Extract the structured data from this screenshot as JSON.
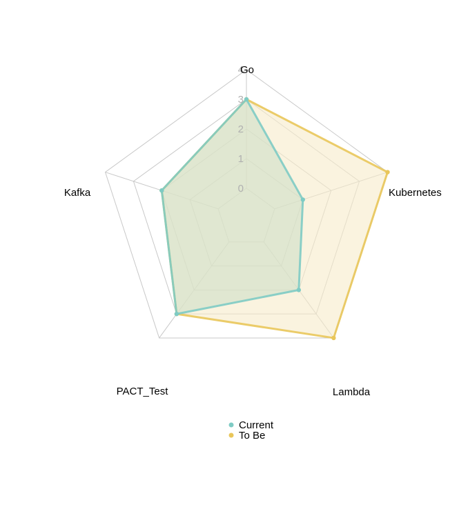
{
  "chart_data": {
    "type": "radar",
    "axes": [
      "Go",
      "Kubernetes",
      "Lambda",
      "PACT_Test",
      "Kafka"
    ],
    "rlim": [
      0,
      4
    ],
    "ticks": [
      "0",
      "1",
      "2",
      "3",
      "4"
    ],
    "grid": true,
    "legend_position": "bottom",
    "series": [
      {
        "name": "Current",
        "values": [
          3,
          1,
          2,
          3,
          2
        ],
        "color": "#7ecbc4",
        "fill": "#cfe0c8"
      },
      {
        "name": "To Be",
        "values": [
          3,
          4,
          4,
          3,
          2
        ],
        "color": "#e9c65a",
        "fill": "#f7ebc9"
      }
    ]
  }
}
